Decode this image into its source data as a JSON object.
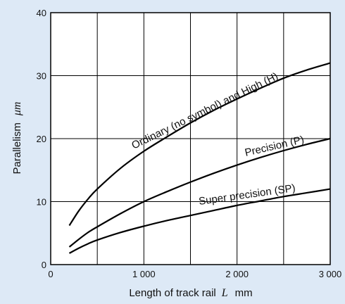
{
  "chart_data": {
    "type": "line",
    "xlabel_parts": [
      "Length of track rail",
      "L",
      "mm"
    ],
    "ylabel_parts": [
      "Parallelism",
      "μm"
    ],
    "xlim": [
      0,
      3000
    ],
    "ylim": [
      0,
      40
    ],
    "x_ticks": [
      {
        "value": 0,
        "label": "0"
      },
      {
        "value": 1000,
        "label": "1 000"
      },
      {
        "value": 2000,
        "label": "2 000"
      },
      {
        "value": 3000,
        "label": "3 000"
      }
    ],
    "y_ticks": [
      {
        "value": 0,
        "label": "0"
      },
      {
        "value": 10,
        "label": "10"
      },
      {
        "value": 20,
        "label": "20"
      },
      {
        "value": 30,
        "label": "30"
      },
      {
        "value": 40,
        "label": "40"
      }
    ],
    "grid": {
      "x_step": 500,
      "y_step": 10
    },
    "series": [
      {
        "name": "Ordinary (no symbol) and High (H)",
        "x": [
          200,
          300,
          400,
          500,
          750,
          1000,
          1250,
          1500,
          1750,
          2000,
          2250,
          2500,
          2750,
          3000
        ],
        "y": [
          6.2,
          8.5,
          10.4,
          12,
          15.3,
          18,
          20.3,
          22.5,
          24.5,
          26.3,
          28,
          29.6,
          30.9,
          32
        ]
      },
      {
        "name": "Precision (P)",
        "x": [
          200,
          300,
          400,
          500,
          750,
          1000,
          1250,
          1500,
          1750,
          2000,
          2250,
          2500,
          2750,
          3000
        ],
        "y": [
          2.8,
          4,
          5.1,
          6,
          8.1,
          10,
          11.6,
          13.1,
          14.5,
          15.8,
          17,
          18.1,
          19.1,
          20
        ]
      },
      {
        "name": "Super precision (SP)",
        "x": [
          200,
          300,
          400,
          500,
          750,
          1000,
          1250,
          1500,
          1750,
          2000,
          2250,
          2500,
          2750,
          3000
        ],
        "y": [
          1.8,
          2.6,
          3.3,
          3.9,
          5.1,
          6.1,
          7,
          7.8,
          8.6,
          9.4,
          10.1,
          10.8,
          11.4,
          12
        ]
      }
    ]
  }
}
